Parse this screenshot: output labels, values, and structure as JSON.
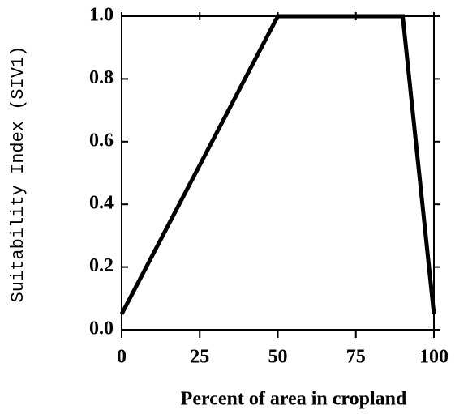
{
  "chart_data": {
    "type": "line",
    "x_label": "Percent of area in cropland",
    "y_label": "Suitability Index (SIV1)",
    "x": [
      0,
      50,
      90,
      100
    ],
    "series": [
      {
        "color": "#000000",
        "values": [
          0.05,
          1.0,
          1.0,
          0.05
        ]
      }
    ],
    "xlim": [
      0,
      100
    ],
    "xticks": [
      0,
      25,
      50,
      75,
      100
    ],
    "ylim": [
      0,
      1
    ],
    "yticks": [
      {
        "value": 0,
        "label": "0.0"
      },
      0.2,
      0.4,
      0.6,
      0.8,
      {
        "value": 1,
        "label": "1.0"
      }
    ],
    "grid": false
  }
}
